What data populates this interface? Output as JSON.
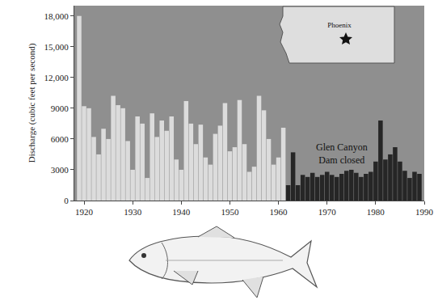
{
  "chart_data": {
    "type": "bar",
    "ylabel": "Discharge (cubic feet per second)",
    "x": [
      1919,
      1920,
      1921,
      1922,
      1923,
      1924,
      1925,
      1926,
      1927,
      1928,
      1929,
      1930,
      1931,
      1932,
      1933,
      1934,
      1935,
      1936,
      1937,
      1938,
      1939,
      1940,
      1941,
      1942,
      1943,
      1944,
      1945,
      1946,
      1947,
      1948,
      1949,
      1950,
      1951,
      1952,
      1953,
      1954,
      1955,
      1956,
      1957,
      1958,
      1959,
      1960,
      1961,
      1962,
      1963,
      1964,
      1965,
      1966,
      1967,
      1968,
      1969,
      1970,
      1971,
      1972,
      1973,
      1974,
      1975,
      1976,
      1977,
      1978,
      1979,
      1980,
      1981,
      1982,
      1983,
      1984,
      1985,
      1986,
      1987,
      1988,
      1989
    ],
    "values": [
      18000,
      9200,
      9000,
      6200,
      4500,
      7000,
      6000,
      10200,
      9300,
      9000,
      5800,
      3000,
      8200,
      7500,
      2200,
      8500,
      6200,
      7800,
      6800,
      8200,
      4000,
      3000,
      9700,
      7500,
      5500,
      7400,
      4200,
      3500,
      6500,
      7300,
      9500,
      4800,
      5200,
      9800,
      5500,
      2800,
      3300,
      10200,
      8800,
      6000,
      3500,
      4200,
      7100,
      1500,
      4700,
      1500,
      2500,
      2300,
      2700,
      2300,
      2500,
      2800,
      2500,
      2300,
      2600,
      2900,
      3000,
      2700,
      2300,
      2600,
      2800,
      3800,
      7800,
      4000,
      4500,
      5200,
      3800,
      2900,
      2200,
      2800,
      2600
    ],
    "colors": [
      "#dcdcdc",
      "#dcdcdc",
      "#dcdcdc",
      "#dcdcdc",
      "#dcdcdc",
      "#dcdcdc",
      "#dcdcdc",
      "#dcdcdc",
      "#dcdcdc",
      "#dcdcdc",
      "#dcdcdc",
      "#dcdcdc",
      "#dcdcdc",
      "#dcdcdc",
      "#dcdcdc",
      "#dcdcdc",
      "#dcdcdc",
      "#dcdcdc",
      "#dcdcdc",
      "#dcdcdc",
      "#dcdcdc",
      "#dcdcdc",
      "#dcdcdc",
      "#dcdcdc",
      "#dcdcdc",
      "#dcdcdc",
      "#dcdcdc",
      "#dcdcdc",
      "#dcdcdc",
      "#dcdcdc",
      "#dcdcdc",
      "#dcdcdc",
      "#dcdcdc",
      "#dcdcdc",
      "#dcdcdc",
      "#dcdcdc",
      "#dcdcdc",
      "#dcdcdc",
      "#dcdcdc",
      "#dcdcdc",
      "#dcdcdc",
      "#dcdcdc",
      "#dcdcdc",
      "#262626",
      "#262626",
      "#262626",
      "#262626",
      "#262626",
      "#262626",
      "#262626",
      "#262626",
      "#262626",
      "#262626",
      "#262626",
      "#262626",
      "#262626",
      "#262626",
      "#262626",
      "#262626",
      "#262626",
      "#262626",
      "#262626",
      "#262626",
      "#262626",
      "#262626",
      "#262626",
      "#262626",
      "#262626",
      "#262626",
      "#262626",
      "#262626"
    ],
    "xlim": [
      1918,
      1990
    ],
    "xticks": [
      1920,
      1930,
      1940,
      1950,
      1960,
      1970,
      1980,
      1990
    ],
    "ylim": [
      0,
      19000
    ],
    "yticks": [
      0,
      3000,
      6000,
      9000,
      {
        "value": 12000,
        "label": "12,000"
      },
      {
        "value": 15000,
        "label": "15,000"
      },
      {
        "value": 18000,
        "label": "18,000"
      }
    ],
    "grid": false,
    "annotations": [
      {
        "text": "Glen Canyon Dam closed",
        "x": 1973,
        "y": 4600
      }
    ],
    "map_inset": {
      "label": "Phoenix"
    }
  }
}
